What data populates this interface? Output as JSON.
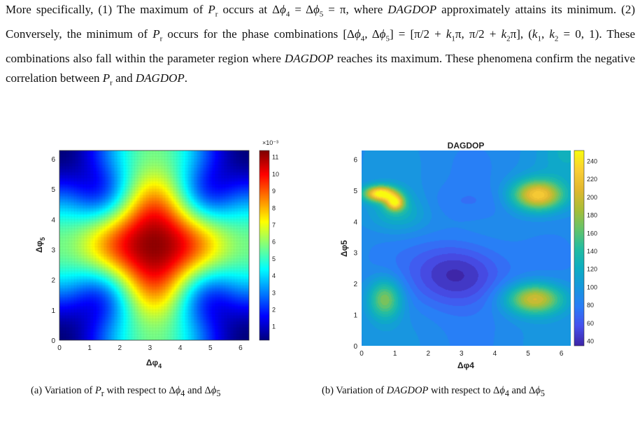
{
  "paragraph": [
    "More specifically, (1) The maximum of ",
    "P",
    "r",
    " occurs at Δ",
    "ϕ",
    "4",
    " = Δ",
    "ϕ",
    "5",
    " = π, where ",
    "DAGDOP",
    " approximately attains its minimum. (2) Conversely, the minimum of ",
    "P",
    "r",
    " occurs for the phase combinations [Δ",
    "ϕ",
    "4",
    ", Δ",
    "ϕ",
    "5",
    "] = [π/2 + ",
    "k",
    "1",
    "π, π/2 + ",
    "k",
    "2",
    "π], (",
    "k",
    "1",
    ", ",
    "k",
    "2",
    " = 0, 1). These combinations also fall within the parameter region where ",
    "DAGDOP",
    " reaches its maximum. These phenomena confirm the negative correlation between ",
    "P",
    "r",
    " and ",
    "DAGDOP",
    "."
  ],
  "figures": [
    {
      "caption_parts": [
        "(a) Variation of ",
        "P",
        "r",
        " with respect to Δ",
        "ϕ",
        "4",
        " and Δ",
        "ϕ",
        "5"
      ],
      "chart_data": {
        "type": "heatmap",
        "title": "",
        "xlabel": "Δφ4",
        "ylabel": "Δφ5",
        "xlim": [
          0,
          6.28
        ],
        "ylim": [
          0,
          6.28
        ],
        "xticks": [
          "0",
          "1",
          "2",
          "3",
          "4",
          "5",
          "6"
        ],
        "yticks": [
          "0",
          "1",
          "2",
          "3",
          "4",
          "5",
          "6"
        ],
        "colorbar": {
          "exponent_label": "×10⁻³",
          "ticks": [
            "1",
            "2",
            "3",
            "4",
            "5",
            "6",
            "7",
            "8",
            "9",
            "10",
            "11"
          ],
          "range": [
            0.2,
            11.4
          ],
          "colormap": "jet"
        },
        "features": [
          {
            "x": 3.14,
            "y": 3.14,
            "value": 11.2,
            "kind": "maximum"
          },
          {
            "x": 1.57,
            "y": 1.57,
            "value": 0.3,
            "kind": "minimum"
          },
          {
            "x": 4.71,
            "y": 1.57,
            "value": 0.3,
            "kind": "minimum"
          },
          {
            "x": 1.57,
            "y": 4.71,
            "value": 0.3,
            "kind": "minimum"
          },
          {
            "x": 4.71,
            "y": 4.71,
            "value": 0.3,
            "kind": "minimum"
          },
          {
            "x": 0,
            "y": 0,
            "value": 3.0,
            "kind": "corner"
          },
          {
            "x": 6.28,
            "y": 0,
            "value": 3.0,
            "kind": "corner"
          },
          {
            "x": 0,
            "y": 6.28,
            "value": 3.0,
            "kind": "corner"
          },
          {
            "x": 6.28,
            "y": 6.28,
            "value": 3.0,
            "kind": "corner"
          }
        ]
      }
    },
    {
      "caption_parts": [
        "(b) Variation of ",
        "DAGDOP",
        " with respect to Δ",
        "ϕ",
        "4",
        " and Δ",
        "ϕ",
        "5"
      ],
      "chart_data": {
        "type": "heatmap",
        "title": "DAGDOP",
        "xlabel": "Δφ4",
        "ylabel": "Δφ5",
        "xlim": [
          0,
          6.28
        ],
        "ylim": [
          0,
          6.28
        ],
        "xticks": [
          "0",
          "1",
          "2",
          "3",
          "4",
          "5",
          "6"
        ],
        "yticks": [
          "0",
          "1",
          "2",
          "3",
          "4",
          "5",
          "6"
        ],
        "colorbar": {
          "ticks": [
            "40",
            "60",
            "80",
            "100",
            "120",
            "140",
            "160",
            "180",
            "200",
            "220",
            "240"
          ],
          "range": [
            35,
            252
          ],
          "colormap": "parula"
        },
        "features": [
          {
            "x": 0.6,
            "y": 4.85,
            "value": 250,
            "kind": "maximum"
          },
          {
            "x": 1.0,
            "y": 4.6,
            "value": 240,
            "kind": "maximum"
          },
          {
            "x": 5.3,
            "y": 4.85,
            "value": 230,
            "kind": "maximum"
          },
          {
            "x": 5.2,
            "y": 1.5,
            "value": 210,
            "kind": "maximum"
          },
          {
            "x": 0.7,
            "y": 1.5,
            "value": 180,
            "kind": "maximum"
          },
          {
            "x": 2.9,
            "y": 2.3,
            "value": 38,
            "kind": "minimum"
          }
        ]
      }
    }
  ]
}
